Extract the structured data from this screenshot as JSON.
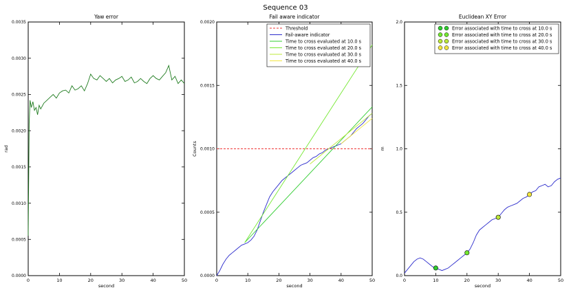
{
  "suptitle": "Sequence 03",
  "chart_data": [
    {
      "type": "line",
      "title": "Yaw error",
      "xlabel": "second",
      "ylabel": "rad",
      "xlim": [
        0,
        50
      ],
      "ylim": [
        0,
        0.0035
      ],
      "xticks": [
        "0",
        "10",
        "20",
        "30",
        "40",
        "50"
      ],
      "yticks": [
        "0.0000",
        "0.0005",
        "0.0010",
        "0.0015",
        "0.0020",
        "0.0025",
        "0.0030",
        "0.0035"
      ],
      "series": [
        {
          "color": "#1e7b1e",
          "x": [
            0,
            0.3,
            0.6,
            1,
            1.5,
            2,
            2.5,
            3,
            3.5,
            4,
            5,
            6,
            7,
            8,
            9,
            10,
            11,
            12,
            13,
            14,
            15,
            16,
            17,
            18,
            19,
            20,
            21,
            22,
            23,
            24,
            25,
            26,
            27,
            28,
            29,
            30,
            31,
            32,
            33,
            34,
            35,
            36,
            37,
            38,
            39,
            40,
            41,
            42,
            43,
            44,
            45,
            46,
            47,
            48,
            49,
            50
          ],
          "y": [
            0.00055,
            0.0021,
            0.00242,
            0.00232,
            0.0024,
            0.00228,
            0.00232,
            0.00222,
            0.00235,
            0.0023,
            0.00238,
            0.00242,
            0.00246,
            0.0025,
            0.00245,
            0.00252,
            0.00255,
            0.00256,
            0.00252,
            0.00262,
            0.00256,
            0.00258,
            0.00262,
            0.00255,
            0.00265,
            0.00278,
            0.00272,
            0.0027,
            0.00276,
            0.00272,
            0.00268,
            0.00272,
            0.00266,
            0.0027,
            0.00272,
            0.00275,
            0.00268,
            0.0027,
            0.00274,
            0.00266,
            0.00268,
            0.00272,
            0.00268,
            0.00265,
            0.00272,
            0.00276,
            0.00272,
            0.0027,
            0.00275,
            0.0028,
            0.0029,
            0.0027,
            0.00275,
            0.00265,
            0.0027,
            0.00265
          ]
        }
      ]
    },
    {
      "type": "line",
      "title": "Fail aware indicator",
      "xlabel": "second",
      "ylabel": "Counts",
      "xlim": [
        0,
        50
      ],
      "ylim": [
        0,
        0.002
      ],
      "xticks": [
        "0",
        "10",
        "20",
        "30",
        "40",
        "50"
      ],
      "yticks": [
        "0.0000",
        "0.0005",
        "0.0010",
        "0.0015",
        "0.0020"
      ],
      "legend_position": "upper-right",
      "series": [
        {
          "name": "Threshold",
          "color": "#ee3333",
          "dashed": true,
          "x": [
            0,
            50
          ],
          "y": [
            0.001,
            0.001
          ]
        },
        {
          "name": "Fail-aware indicator",
          "color": "#2b2bcc",
          "x": [
            0,
            1,
            2,
            3,
            4,
            5,
            6,
            7,
            8,
            9,
            10,
            11,
            12,
            13,
            14,
            15,
            16,
            17,
            18,
            19,
            20,
            21,
            22,
            23,
            24,
            25,
            26,
            27,
            28,
            29,
            30,
            31,
            32,
            33,
            34,
            35,
            36,
            37,
            38,
            39,
            40,
            41,
            42,
            43,
            44,
            45,
            46,
            47,
            48,
            49,
            50
          ],
          "y": [
            0,
            4e-05,
            9e-05,
            0.00013,
            0.00016,
            0.00018,
            0.0002,
            0.00022,
            0.00024,
            0.00025,
            0.00026,
            0.00028,
            0.00031,
            0.00036,
            0.00043,
            0.0005,
            0.00056,
            0.00062,
            0.00066,
            0.00069,
            0.00072,
            0.00075,
            0.00077,
            0.00079,
            0.00081,
            0.00083,
            0.00085,
            0.00087,
            0.00088,
            0.00089,
            0.00091,
            0.00093,
            0.00094,
            0.00096,
            0.00097,
            0.00099,
            0.001,
            0.00101,
            0.00102,
            0.00103,
            0.00104,
            0.00106,
            0.00108,
            0.0011,
            0.00113,
            0.00116,
            0.00118,
            0.0012,
            0.00123,
            0.00126,
            0.00128
          ]
        },
        {
          "name": "Time to cross evaluated at 10.0 s",
          "color": "#2fcc2f",
          "x": [
            9,
            50
          ],
          "y": [
            0.00026,
            0.00133
          ]
        },
        {
          "name": "Time to cross evaluated at 20.0 s",
          "color": "#74e830",
          "x": [
            9,
            50
          ],
          "y": [
            0.00026,
            0.00182
          ]
        },
        {
          "name": "Time to cross evaluated at 30.0 s",
          "color": "#bde83a",
          "x": [
            30,
            50
          ],
          "y": [
            0.00088,
            0.00128
          ]
        },
        {
          "name": "Time to cross evaluated at 40.0 s",
          "color": "#f2e640",
          "x": [
            40,
            50
          ],
          "y": [
            0.00104,
            0.00124
          ]
        }
      ]
    },
    {
      "type": "line",
      "title": "Euclidean XY Error",
      "xlabel": "second",
      "ylabel": "m",
      "xlim": [
        0,
        50
      ],
      "ylim": [
        0,
        2.0
      ],
      "xticks": [
        "0",
        "10",
        "20",
        "30",
        "40",
        "50"
      ],
      "yticks": [
        "0.0",
        "0.5",
        "1.0",
        "1.5",
        "2.0"
      ],
      "legend_position": "upper-right",
      "series": [
        {
          "color": "#2b2bcc",
          "x": [
            0,
            1,
            2,
            3,
            4,
            5,
            6,
            7,
            8,
            9,
            10,
            11,
            12,
            13,
            14,
            15,
            16,
            17,
            18,
            19,
            20,
            21,
            22,
            23,
            24,
            25,
            26,
            27,
            28,
            29,
            30,
            31,
            32,
            33,
            34,
            35,
            36,
            37,
            38,
            39,
            40,
            41,
            42,
            43,
            44,
            45,
            46,
            47,
            48,
            49,
            50
          ],
          "y": [
            0.02,
            0.05,
            0.08,
            0.11,
            0.13,
            0.14,
            0.13,
            0.11,
            0.09,
            0.07,
            0.06,
            0.05,
            0.04,
            0.05,
            0.06,
            0.08,
            0.1,
            0.12,
            0.14,
            0.16,
            0.18,
            0.21,
            0.26,
            0.32,
            0.36,
            0.38,
            0.4,
            0.42,
            0.44,
            0.45,
            0.46,
            0.49,
            0.52,
            0.54,
            0.55,
            0.56,
            0.57,
            0.59,
            0.61,
            0.62,
            0.64,
            0.66,
            0.67,
            0.7,
            0.71,
            0.72,
            0.7,
            0.71,
            0.74,
            0.76,
            0.77
          ]
        }
      ],
      "markers": [
        {
          "name": "Error associated with time to cross at 10.0 s",
          "color": "#2fcc2f",
          "x": 10,
          "y": 0.06
        },
        {
          "name": "Error associated with time to cross at 20.0 s",
          "color": "#74e830",
          "x": 20,
          "y": 0.18
        },
        {
          "name": "Error associated with time to cross at 30.0 s",
          "color": "#bde83a",
          "x": 30,
          "y": 0.46
        },
        {
          "name": "Error associated with time to cross at 40.0 s",
          "color": "#f2e640",
          "x": 40,
          "y": 0.64
        }
      ]
    }
  ]
}
